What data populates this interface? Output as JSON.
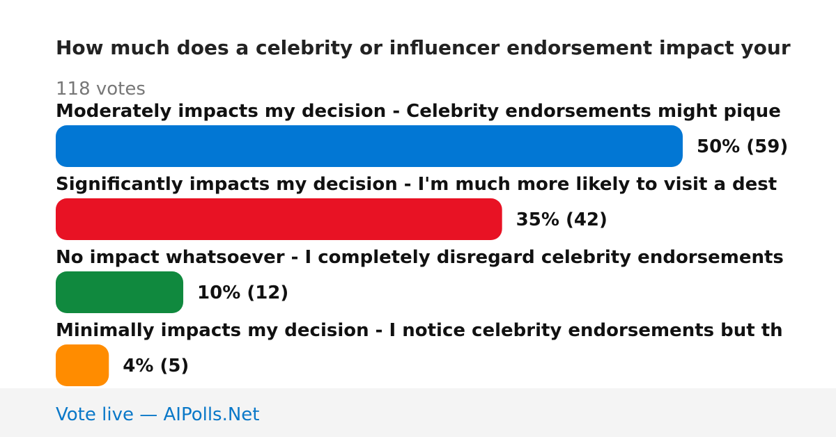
{
  "chart_data": {
    "type": "bar",
    "title": "How much does a celebrity or influencer endorsement impact your",
    "subtitle": "118 votes",
    "categories": [
      "Moderately impacts my decision - Celebrity endorsements might pique",
      "Significantly impacts my decision - I'm much more likely to visit a dest",
      "No impact whatsoever - I completely disregard celebrity endorsements",
      "Minimally impacts my decision - I notice celebrity endorsements but th"
    ],
    "values": [
      59,
      42,
      12,
      5
    ],
    "value_labels": [
      "50% (59)",
      "35% (42)",
      "10% (12)",
      "4% (5)"
    ],
    "colors": [
      "#0277d4",
      "#e81224",
      "#10893e",
      "#ff8c00"
    ],
    "footer": "Vote live — AIPolls.Net"
  }
}
